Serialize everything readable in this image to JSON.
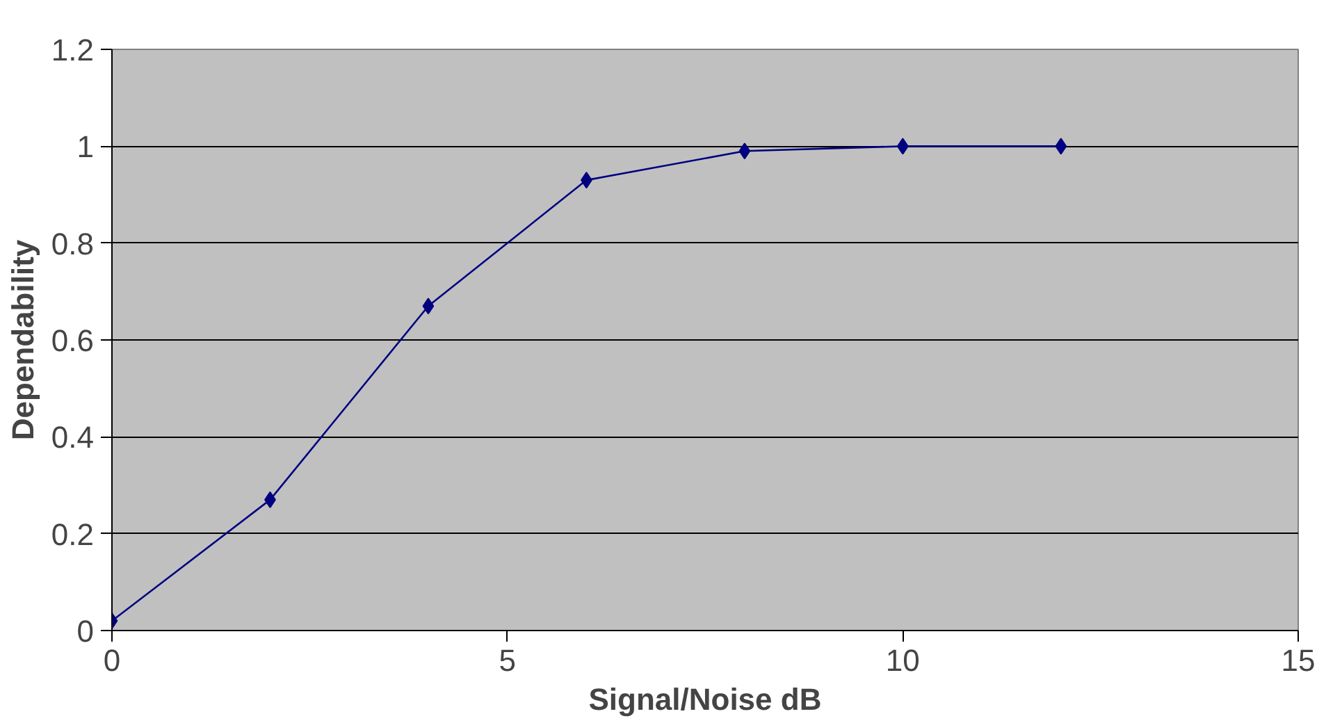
{
  "chart_data": {
    "type": "line",
    "xlabel": "Signal/Noise dB",
    "ylabel": "Dependability",
    "x": [
      0,
      2,
      4,
      6,
      8,
      10,
      12
    ],
    "series": [
      {
        "color": "#000080",
        "values": [
          0.02,
          0.27,
          0.67,
          0.93,
          0.99,
          1,
          1
        ]
      }
    ],
    "xlim": [
      0,
      15
    ],
    "xticks": [
      0,
      5,
      10,
      15
    ],
    "ylim": [
      0,
      1.2
    ],
    "yticks": [
      0,
      0.2,
      0.4,
      0.6,
      0.8,
      1,
      1.2
    ],
    "grid": "y",
    "marker": "diamond",
    "line_style": "solid"
  }
}
